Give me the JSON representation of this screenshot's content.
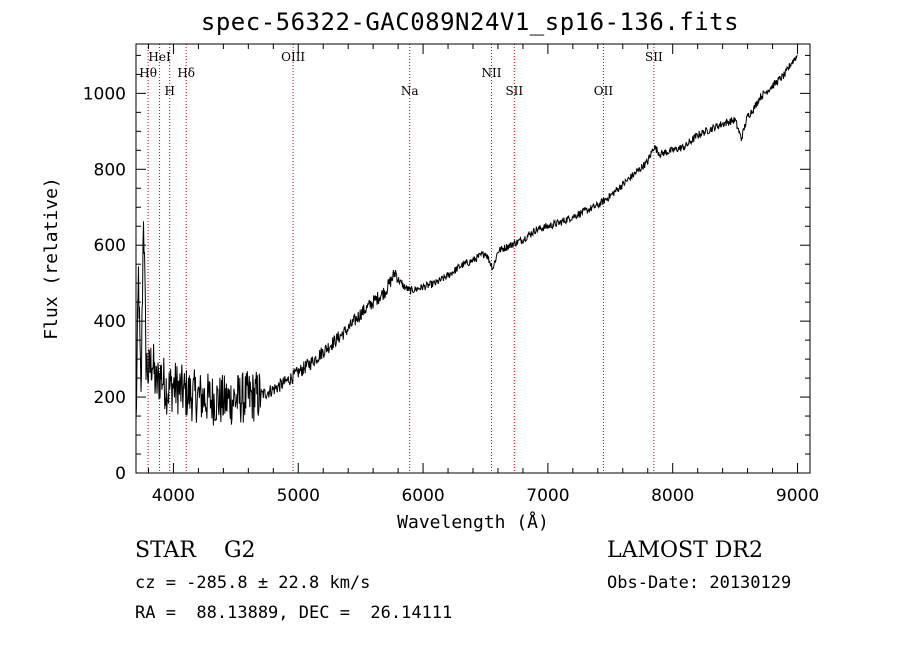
{
  "header": {
    "title": "spec-56322-GAC089N24V1_sp16-136.fits"
  },
  "info": {
    "class_label": "STAR",
    "subclass_label": "G2",
    "survey": "LAMOST DR2",
    "cz": "cz = -285.8 ± 22.8 km/s",
    "obs_date": "Obs-Date: 20130129",
    "radec": "RA =  88.13889, DEC =  26.14111"
  },
  "chart_data": {
    "type": "line",
    "title": "spec-56322-GAC089N24V1_sp16-136.fits",
    "xlabel": "Wavelength (Å)",
    "ylabel": "Flux (relative)",
    "xlim": [
      3700,
      9100
    ],
    "ylim": [
      0,
      1130
    ],
    "xticks": [
      4000,
      5000,
      6000,
      7000,
      8000,
      9000
    ],
    "yticks": [
      0,
      200,
      400,
      600,
      800,
      1000
    ],
    "grid": false,
    "line_color": "#000000",
    "marker_color": "#c00000",
    "series": [
      {
        "x": [
          3700,
          3720,
          3740,
          3760,
          3780,
          3800,
          3830,
          3860,
          3900,
          3950,
          4000,
          4100,
          4200,
          4300,
          4400,
          4500,
          4600,
          4700,
          4800,
          4900,
          5000,
          5100,
          5200,
          5300,
          5400,
          5500,
          5600,
          5700,
          5780,
          5800,
          5850,
          5900,
          6000,
          6100,
          6200,
          6300,
          6400,
          6500,
          6560,
          6600,
          6700,
          6800,
          6900,
          7000,
          7100,
          7200,
          7300,
          7400,
          7500,
          7600,
          7700,
          7800,
          7850,
          7900,
          8000,
          8100,
          8200,
          8300,
          8400,
          8500,
          8550,
          8600,
          8650,
          8700,
          8800,
          8900,
          8950,
          9000
        ],
        "y": [
          120,
          520,
          180,
          700,
          300,
          260,
          300,
          230,
          260,
          220,
          230,
          210,
          200,
          195,
          190,
          195,
          200,
          205,
          220,
          240,
          265,
          290,
          320,
          350,
          380,
          420,
          450,
          480,
          530,
          510,
          490,
          480,
          490,
          500,
          520,
          545,
          560,
          580,
          540,
          585,
          600,
          615,
          640,
          650,
          660,
          675,
          690,
          705,
          730,
          760,
          790,
          820,
          860,
          840,
          850,
          860,
          890,
          905,
          920,
          930,
          880,
          940,
          960,
          990,
          1020,
          1050,
          1080,
          1100
        ]
      }
    ],
    "markers": [
      {
        "label": "Hθ",
        "x": 3797,
        "row": 2
      },
      {
        "label": "HeI",
        "x": 3889,
        "row": 1
      },
      {
        "label": "H",
        "x": 3970,
        "row": 3
      },
      {
        "label": "Hδ",
        "x": 4102,
        "row": 2
      },
      {
        "label": "OIII",
        "x": 4959,
        "row": 1
      },
      {
        "label": "Na",
        "x": 5893,
        "row": 3
      },
      {
        "label": "NII",
        "x": 6548,
        "row": 2
      },
      {
        "label": "SII",
        "x": 6731,
        "row": 3
      },
      {
        "label": "OII",
        "x": 7445,
        "row": 3
      },
      {
        "label": "SII",
        "x": 7849,
        "row": 1
      }
    ]
  }
}
